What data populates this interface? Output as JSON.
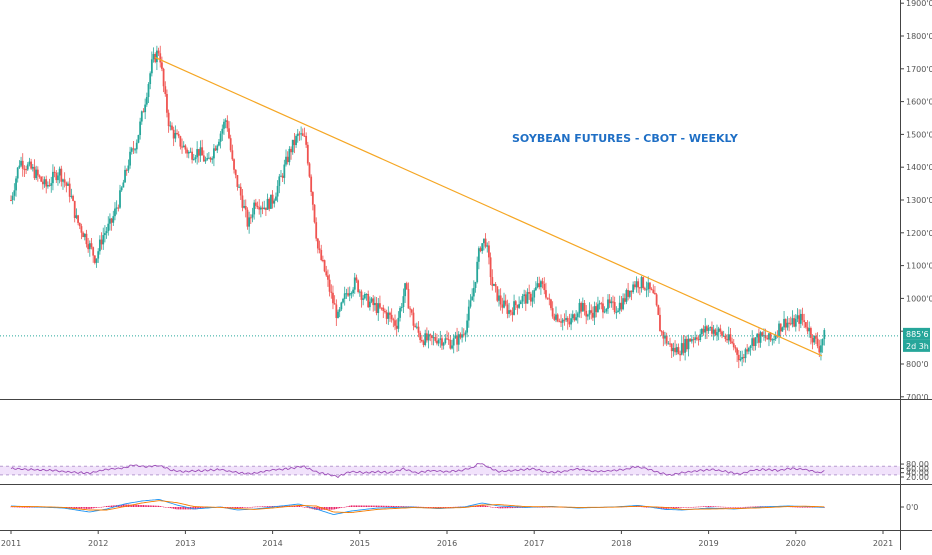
{
  "chart_data": {
    "type": "candlestick",
    "title": "SOYBEAN FUTURES - CBOT - WEEKLY",
    "colors": {
      "up": "#26a69a",
      "down": "#ef5350",
      "trendline": "#f5a623",
      "rsi_line": "#9c4fb8",
      "rsi_band": "#f1e2fb",
      "macd_line": "#2196f3",
      "signal_line": "#f57c00",
      "histogram": "#e91e63",
      "price_tag": "#26a69a",
      "title": "#1f6fc5"
    },
    "x_axis": {
      "tick_labels": [
        "2011",
        "2012",
        "2013",
        "2014",
        "2015",
        "2016",
        "2017",
        "2018",
        "2019",
        "2020",
        "2021"
      ],
      "range": [
        2011.0,
        2021.0
      ]
    },
    "price_axis": {
      "tick_labels": [
        "700'0",
        "800'0",
        "900'0",
        "1000'0",
        "1100'0",
        "1200'0",
        "1300'0",
        "1400'0",
        "1500'0",
        "1600'0",
        "1700'0",
        "1800'0",
        "1900'0"
      ],
      "range": [
        700,
        1900
      ]
    },
    "price_tags": [
      "885'6",
      "2d 3h"
    ],
    "current_price": 885.75,
    "trendline": {
      "start": [
        2012.65,
        1735
      ],
      "end": [
        2020.3,
        825
      ]
    },
    "price_anchors": [
      [
        2011.0,
        1300
      ],
      [
        2011.1,
        1420
      ],
      [
        2011.25,
        1390
      ],
      [
        2011.4,
        1340
      ],
      [
        2011.55,
        1390
      ],
      [
        2011.68,
        1320
      ],
      [
        2011.75,
        1240
      ],
      [
        2011.85,
        1190
      ],
      [
        2011.97,
        1120
      ],
      [
        2012.05,
        1190
      ],
      [
        2012.15,
        1230
      ],
      [
        2012.25,
        1310
      ],
      [
        2012.35,
        1420
      ],
      [
        2012.45,
        1490
      ],
      [
        2012.52,
        1580
      ],
      [
        2012.62,
        1720
      ],
      [
        2012.7,
        1760
      ],
      [
        2012.76,
        1620
      ],
      [
        2012.82,
        1520
      ],
      [
        2012.92,
        1480
      ],
      [
        2013.05,
        1440
      ],
      [
        2013.15,
        1450
      ],
      [
        2013.25,
        1410
      ],
      [
        2013.35,
        1470
      ],
      [
        2013.47,
        1550
      ],
      [
        2013.55,
        1390
      ],
      [
        2013.65,
        1300
      ],
      [
        2013.72,
        1220
      ],
      [
        2013.8,
        1300
      ],
      [
        2013.9,
        1280
      ],
      [
        2014.0,
        1300
      ],
      [
        2014.1,
        1370
      ],
      [
        2014.2,
        1450
      ],
      [
        2014.3,
        1500
      ],
      [
        2014.38,
        1480
      ],
      [
        2014.45,
        1320
      ],
      [
        2014.52,
        1150
      ],
      [
        2014.6,
        1080
      ],
      [
        2014.68,
        1000
      ],
      [
        2014.75,
        940
      ],
      [
        2014.85,
        1020
      ],
      [
        2014.95,
        1050
      ],
      [
        2015.05,
        1000
      ],
      [
        2015.2,
        970
      ],
      [
        2015.32,
        950
      ],
      [
        2015.42,
        920
      ],
      [
        2015.52,
        1030
      ],
      [
        2015.62,
        920
      ],
      [
        2015.7,
        880
      ],
      [
        2015.8,
        870
      ],
      [
        2015.9,
        880
      ],
      [
        2016.05,
        865
      ],
      [
        2016.15,
        880
      ],
      [
        2016.22,
        920
      ],
      [
        2016.3,
        1020
      ],
      [
        2016.38,
        1160
      ],
      [
        2016.44,
        1180
      ],
      [
        2016.52,
        1040
      ],
      [
        2016.62,
        985
      ],
      [
        2016.72,
        960
      ],
      [
        2016.85,
        1000
      ],
      [
        2016.95,
        1000
      ],
      [
        2017.05,
        1040
      ],
      [
        2017.12,
        1030
      ],
      [
        2017.2,
        960
      ],
      [
        2017.3,
        940
      ],
      [
        2017.4,
        920
      ],
      [
        2017.52,
        980
      ],
      [
        2017.62,
        950
      ],
      [
        2017.72,
        970
      ],
      [
        2017.82,
        980
      ],
      [
        2017.92,
        970
      ],
      [
        2018.02,
        990
      ],
      [
        2018.12,
        1040
      ],
      [
        2018.2,
        1050
      ],
      [
        2018.28,
        1040
      ],
      [
        2018.38,
        1000
      ],
      [
        2018.45,
        900
      ],
      [
        2018.52,
        870
      ],
      [
        2018.6,
        840
      ],
      [
        2018.7,
        850
      ],
      [
        2018.8,
        880
      ],
      [
        2018.9,
        890
      ],
      [
        2019.0,
        910
      ],
      [
        2019.1,
        900
      ],
      [
        2019.2,
        880
      ],
      [
        2019.3,
        850
      ],
      [
        2019.38,
        810
      ],
      [
        2019.45,
        860
      ],
      [
        2019.55,
        880
      ],
      [
        2019.65,
        880
      ],
      [
        2019.72,
        870
      ],
      [
        2019.8,
        910
      ],
      [
        2019.88,
        930
      ],
      [
        2019.95,
        920
      ],
      [
        2020.05,
        940
      ],
      [
        2020.12,
        920
      ],
      [
        2020.2,
        880
      ],
      [
        2020.27,
        850
      ],
      [
        2020.32,
        885.75
      ]
    ],
    "rsi": {
      "tick_labels": [
        "20.00",
        "40.00",
        "60.00",
        "80.00"
      ],
      "range": [
        14,
        90
      ],
      "band": [
        30,
        70
      ],
      "anchors": [
        [
          2011.0,
          60
        ],
        [
          2011.2,
          55
        ],
        [
          2011.5,
          50
        ],
        [
          2011.7,
          42
        ],
        [
          2011.9,
          38
        ],
        [
          2012.1,
          55
        ],
        [
          2012.3,
          62
        ],
        [
          2012.4,
          75
        ],
        [
          2012.55,
          68
        ],
        [
          2012.7,
          73
        ],
        [
          2012.85,
          50
        ],
        [
          2013.0,
          45
        ],
        [
          2013.2,
          50
        ],
        [
          2013.4,
          55
        ],
        [
          2013.6,
          40
        ],
        [
          2013.75,
          35
        ],
        [
          2014.0,
          52
        ],
        [
          2014.2,
          60
        ],
        [
          2014.35,
          70
        ],
        [
          2014.5,
          44
        ],
        [
          2014.65,
          30
        ],
        [
          2014.75,
          22
        ],
        [
          2014.9,
          46
        ],
        [
          2015.05,
          40
        ],
        [
          2015.2,
          45
        ],
        [
          2015.35,
          40
        ],
        [
          2015.5,
          58
        ],
        [
          2015.65,
          38
        ],
        [
          2015.8,
          50
        ],
        [
          2016.0,
          45
        ],
        [
          2016.15,
          50
        ],
        [
          2016.28,
          62
        ],
        [
          2016.38,
          86
        ],
        [
          2016.48,
          63
        ],
        [
          2016.6,
          45
        ],
        [
          2016.8,
          52
        ],
        [
          2017.0,
          58
        ],
        [
          2017.15,
          42
        ],
        [
          2017.3,
          44
        ],
        [
          2017.5,
          58
        ],
        [
          2017.7,
          45
        ],
        [
          2017.9,
          50
        ],
        [
          2018.05,
          55
        ],
        [
          2018.15,
          68
        ],
        [
          2018.3,
          58
        ],
        [
          2018.45,
          38
        ],
        [
          2018.55,
          28
        ],
        [
          2018.7,
          40
        ],
        [
          2018.9,
          50
        ],
        [
          2019.05,
          55
        ],
        [
          2019.2,
          45
        ],
        [
          2019.35,
          32
        ],
        [
          2019.5,
          52
        ],
        [
          2019.65,
          55
        ],
        [
          2019.8,
          50
        ],
        [
          2019.95,
          60
        ],
        [
          2020.1,
          55
        ],
        [
          2020.2,
          48
        ],
        [
          2020.27,
          38
        ],
        [
          2020.32,
          47
        ]
      ]
    },
    "macd": {
      "tick_labels": [
        "0'0"
      ],
      "range": [
        -45,
        45
      ],
      "macd_anchors": [
        [
          2011.0,
          5
        ],
        [
          2011.3,
          0
        ],
        [
          2011.6,
          -5
        ],
        [
          2011.9,
          -25
        ],
        [
          2012.1,
          -10
        ],
        [
          2012.3,
          15
        ],
        [
          2012.5,
          30
        ],
        [
          2012.7,
          38
        ],
        [
          2012.9,
          10
        ],
        [
          2013.1,
          -10
        ],
        [
          2013.4,
          0
        ],
        [
          2013.6,
          -15
        ],
        [
          2013.8,
          -10
        ],
        [
          2014.0,
          0
        ],
        [
          2014.3,
          15
        ],
        [
          2014.5,
          -10
        ],
        [
          2014.7,
          -38
        ],
        [
          2014.9,
          -20
        ],
        [
          2015.2,
          -5
        ],
        [
          2015.6,
          0
        ],
        [
          2015.9,
          -8
        ],
        [
          2016.2,
          0
        ],
        [
          2016.4,
          20
        ],
        [
          2016.6,
          5
        ],
        [
          2016.9,
          -2
        ],
        [
          2017.2,
          3
        ],
        [
          2017.5,
          -5
        ],
        [
          2017.9,
          0
        ],
        [
          2018.2,
          8
        ],
        [
          2018.5,
          -12
        ],
        [
          2018.7,
          -15
        ],
        [
          2019.0,
          -5
        ],
        [
          2019.3,
          -10
        ],
        [
          2019.6,
          0
        ],
        [
          2019.9,
          5
        ],
        [
          2020.1,
          3
        ],
        [
          2020.32,
          -2
        ]
      ],
      "signal_anchors": [
        [
          2011.0,
          3
        ],
        [
          2011.3,
          2
        ],
        [
          2011.6,
          -2
        ],
        [
          2011.9,
          -15
        ],
        [
          2012.1,
          -15
        ],
        [
          2012.3,
          2
        ],
        [
          2012.5,
          20
        ],
        [
          2012.7,
          32
        ],
        [
          2012.9,
          22
        ],
        [
          2013.1,
          2
        ],
        [
          2013.4,
          -2
        ],
        [
          2013.6,
          -8
        ],
        [
          2013.8,
          -12
        ],
        [
          2014.0,
          -5
        ],
        [
          2014.3,
          8
        ],
        [
          2014.5,
          5
        ],
        [
          2014.7,
          -25
        ],
        [
          2014.9,
          -28
        ],
        [
          2015.2,
          -12
        ],
        [
          2015.6,
          -3
        ],
        [
          2015.9,
          -5
        ],
        [
          2016.2,
          -3
        ],
        [
          2016.4,
          10
        ],
        [
          2016.6,
          12
        ],
        [
          2016.9,
          2
        ],
        [
          2017.2,
          1
        ],
        [
          2017.5,
          -2
        ],
        [
          2017.9,
          -1
        ],
        [
          2018.2,
          4
        ],
        [
          2018.5,
          -2
        ],
        [
          2018.7,
          -12
        ],
        [
          2019.0,
          -10
        ],
        [
          2019.3,
          -8
        ],
        [
          2019.6,
          -4
        ],
        [
          2019.9,
          2
        ],
        [
          2020.1,
          4
        ],
        [
          2020.32,
          1
        ]
      ]
    }
  }
}
